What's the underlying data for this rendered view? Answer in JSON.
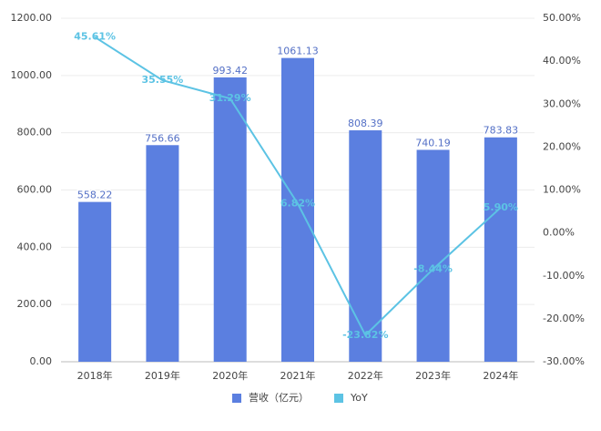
{
  "chart_data": {
    "type": "bar-line",
    "categories": [
      "2018年",
      "2019年",
      "2020年",
      "2021年",
      "2022年",
      "2023年",
      "2024年"
    ],
    "series": [
      {
        "name": "营收（亿元）",
        "type": "bar",
        "color": "#5b7fe0",
        "values": [
          558.22,
          756.66,
          993.42,
          1061.13,
          808.39,
          740.19,
          783.83
        ]
      },
      {
        "name": "YoY",
        "type": "line",
        "axis": "y2",
        "color": "#5cc3e4",
        "values": [
          45.61,
          35.55,
          31.29,
          6.82,
          -23.82,
          -8.44,
          5.9
        ],
        "value_labels": [
          "45.61%",
          "35.55%",
          "31.29%",
          "6.82%",
          "-23.82%",
          "-8.44%",
          "5.90%"
        ]
      }
    ],
    "ylim": [
      0,
      1200
    ],
    "yticks": [
      {
        "value": 0,
        "label": "0.00"
      },
      {
        "value": 200,
        "label": "200.00"
      },
      {
        "value": 400,
        "label": "400.00"
      },
      {
        "value": 600,
        "label": "600.00"
      },
      {
        "value": 800,
        "label": "800.00"
      },
      {
        "value": 1000,
        "label": "1000.00"
      },
      {
        "value": 1200,
        "label": "1200.00"
      }
    ],
    "y2lim": [
      -30,
      50
    ],
    "y2ticks": [
      {
        "value": -30,
        "label": "-30.00%"
      },
      {
        "value": -20,
        "label": "-20.00%"
      },
      {
        "value": -10,
        "label": "-10.00%"
      },
      {
        "value": 0,
        "label": "0.00%"
      },
      {
        "value": 10,
        "label": "10.00%"
      },
      {
        "value": 20,
        "label": "20.00%"
      },
      {
        "value": 30,
        "label": "30.00%"
      },
      {
        "value": 40,
        "label": "40.00%"
      },
      {
        "value": 50,
        "label": "50.00%"
      }
    ],
    "grid": true,
    "legend": "bottom"
  }
}
